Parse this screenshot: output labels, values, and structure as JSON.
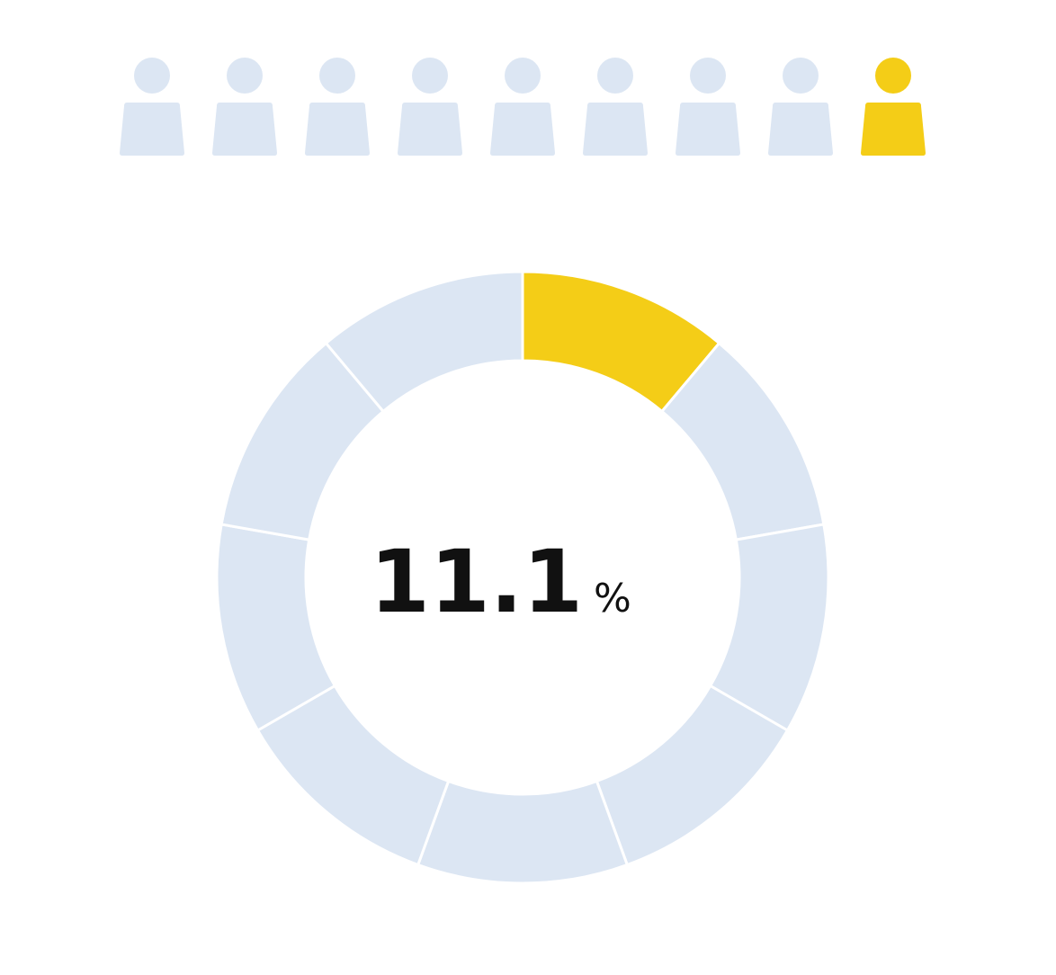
{
  "chart_data": {
    "type": "donut",
    "values": [
      11.1,
      11.1,
      11.1,
      11.1,
      11.1,
      11.1,
      11.1,
      11.1,
      11.1
    ],
    "colors": [
      "#f4cd17",
      "#dce6f3",
      "#dce6f3",
      "#dce6f3",
      "#dce6f3",
      "#dce6f3",
      "#dce6f3",
      "#dce6f3",
      "#dce6f3"
    ],
    "center_value": 11.1,
    "center_unit": "%",
    "pictogram_colors": [
      "#dce6f3",
      "#dce6f3",
      "#dce6f3",
      "#dce6f3",
      "#dce6f3",
      "#dce6f3",
      "#dce6f3",
      "#dce6f3",
      "#f4cd17"
    ]
  }
}
